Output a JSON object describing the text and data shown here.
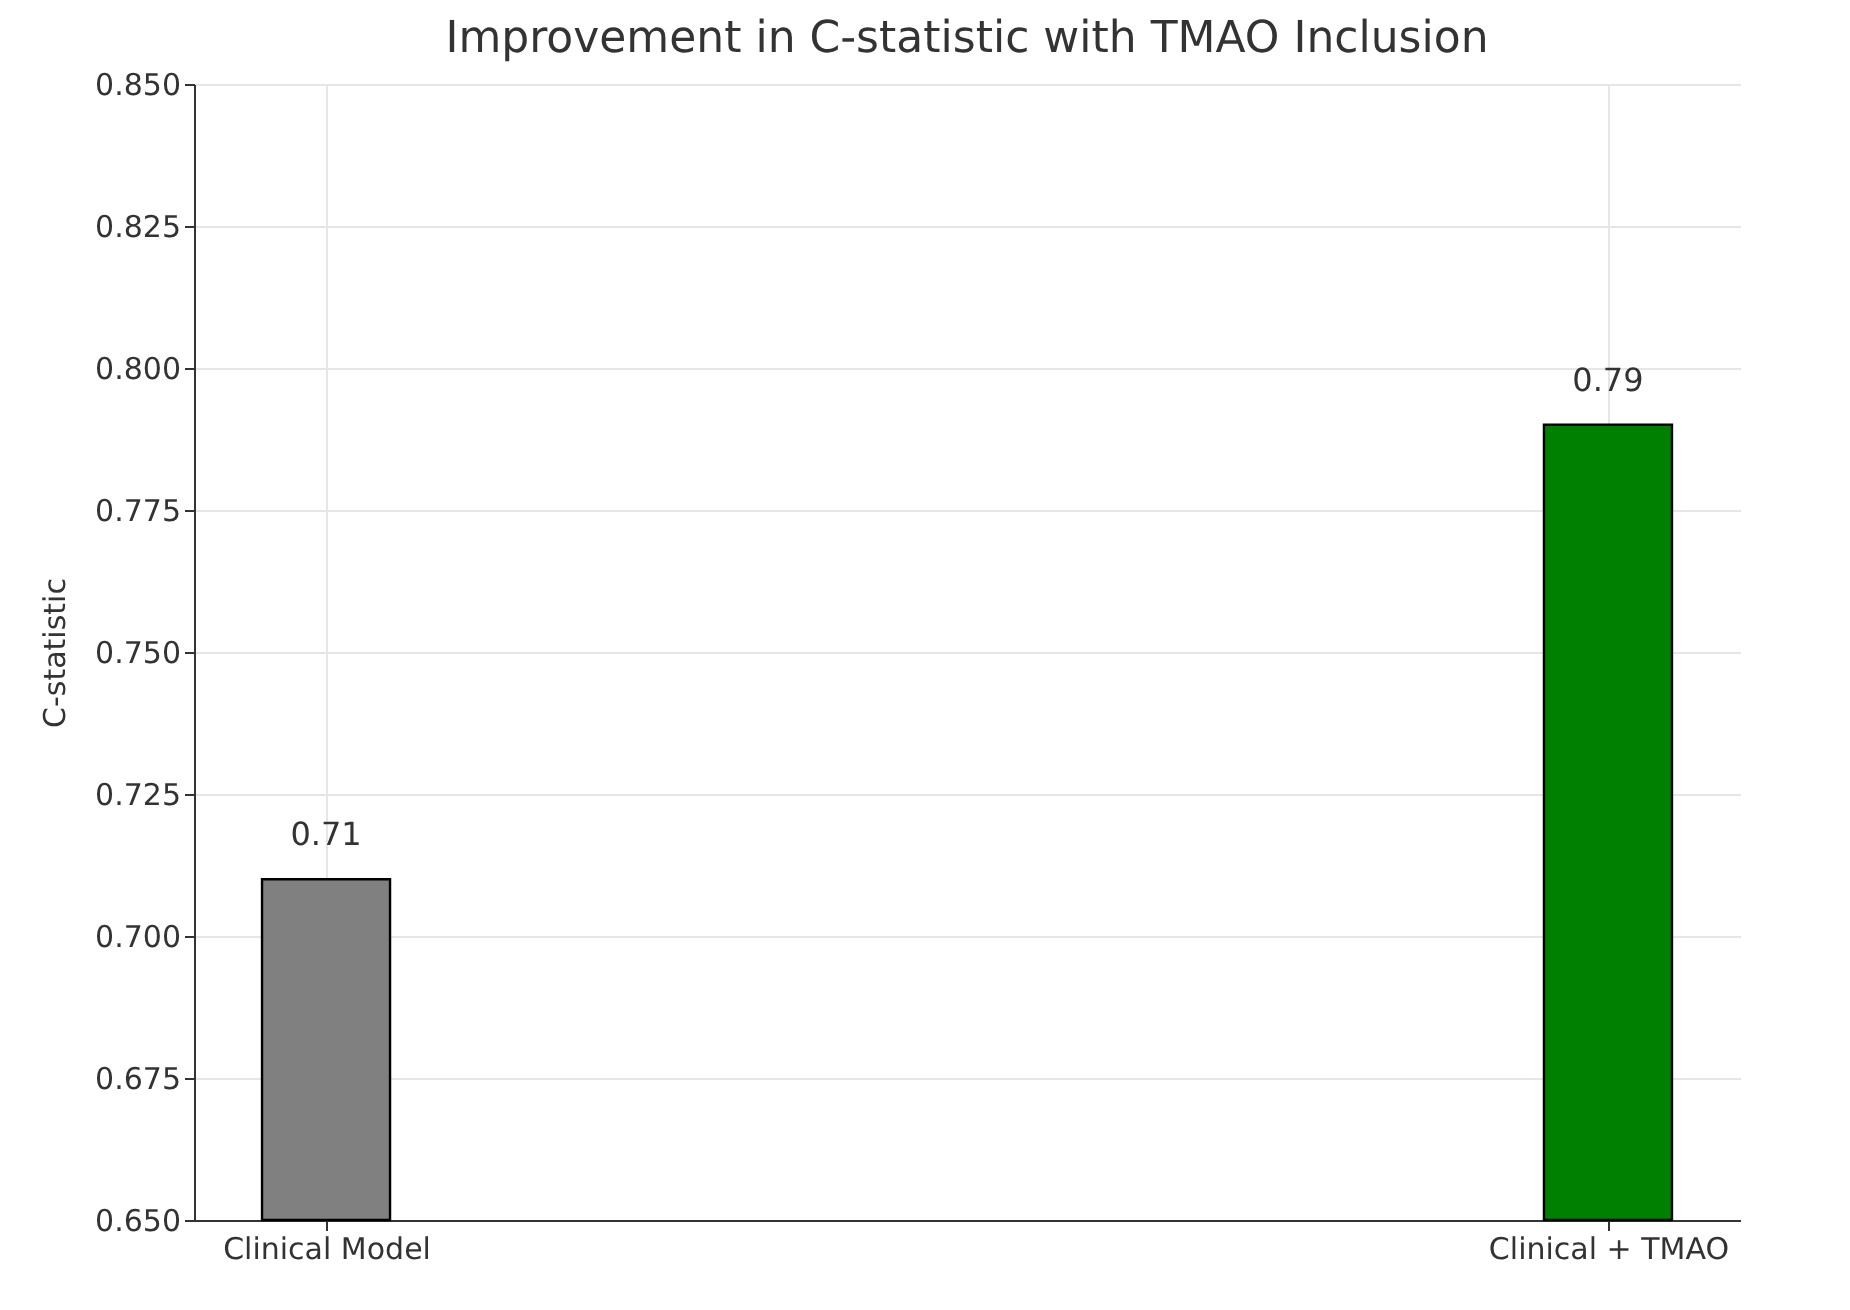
{
  "chart_data": {
    "type": "bar",
    "title": "Improvement in C-statistic with TMAO Inclusion",
    "ylabel": "C-statistic",
    "categories": [
      "Clinical Model",
      "Clinical + TMAO"
    ],
    "values": [
      0.71,
      0.79
    ],
    "colors": [
      "#808080",
      "#008000"
    ],
    "ylim": [
      0.65,
      0.85
    ],
    "yticks": [
      {
        "value": 0.65,
        "label": "0.650"
      },
      {
        "value": 0.675,
        "label": "0.675"
      },
      {
        "value": 0.7,
        "label": "0.700"
      },
      {
        "value": 0.725,
        "label": "0.725"
      },
      {
        "value": 0.75,
        "label": "0.750"
      },
      {
        "value": 0.775,
        "label": "0.775"
      },
      {
        "value": 0.8,
        "label": "0.800"
      },
      {
        "value": 0.825,
        "label": "0.825"
      },
      {
        "value": 0.85,
        "label": "0.850"
      }
    ],
    "grid": true,
    "data_labels": true
  }
}
